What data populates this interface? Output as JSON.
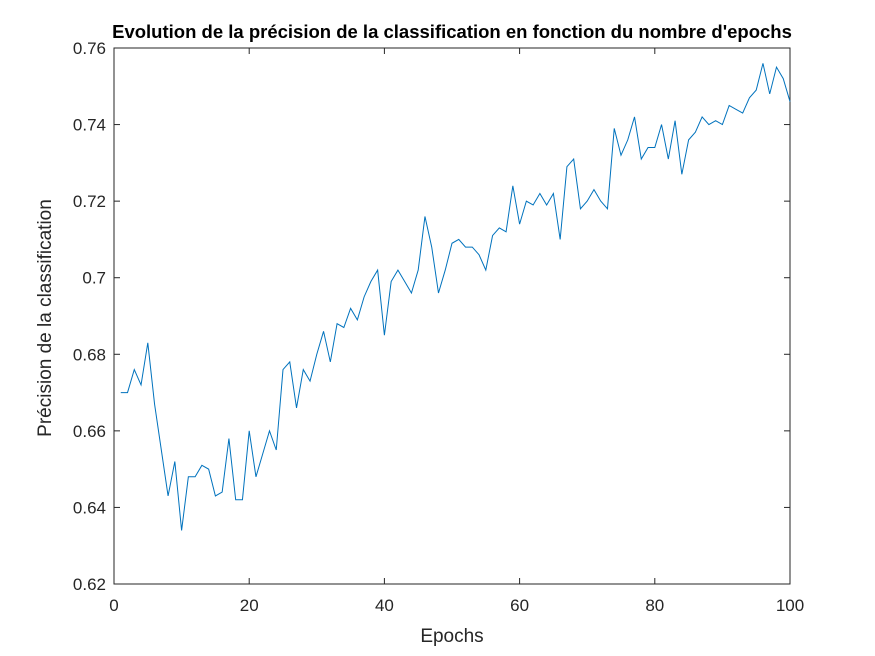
{
  "chart_data": {
    "type": "line",
    "title": "Evolution de la précision de la classification en fonction du nombre d'epochs",
    "xlabel": "Epochs",
    "ylabel": "Précision de la classification",
    "xlim": [
      0,
      100
    ],
    "ylim": [
      0.62,
      0.76
    ],
    "xticks": [
      0,
      20,
      40,
      60,
      80,
      100
    ],
    "xtick_labels": [
      "0",
      "20",
      "40",
      "60",
      "80",
      "100"
    ],
    "yticks": [
      0.62,
      0.64,
      0.66,
      0.68,
      0.7,
      0.72,
      0.74,
      0.76
    ],
    "ytick_labels": [
      "0.62",
      "0.64",
      "0.66",
      "0.68",
      "0.7",
      "0.72",
      "0.74",
      "0.76"
    ],
    "grid": false,
    "line_color": "#0072BD",
    "series": [
      {
        "x": [
          1,
          2,
          3,
          4,
          5,
          6,
          7,
          8,
          9,
          10,
          11,
          12,
          13,
          14,
          15,
          16,
          17,
          18,
          19,
          20,
          21,
          22,
          23,
          24,
          25,
          26,
          27,
          28,
          29,
          30,
          31,
          32,
          33,
          34,
          35,
          36,
          37,
          38,
          39,
          40,
          41,
          42,
          43,
          44,
          45,
          46,
          47,
          48,
          49,
          50,
          51,
          52,
          53,
          54,
          55,
          56,
          57,
          58,
          59,
          60,
          61,
          62,
          63,
          64,
          65,
          66,
          67,
          68,
          69,
          70,
          71,
          72,
          73,
          74,
          75,
          76,
          77,
          78,
          79,
          80,
          81,
          82,
          83,
          84,
          85,
          86,
          87,
          88,
          89,
          90,
          91,
          92,
          93,
          94,
          95,
          96,
          97,
          98,
          99,
          100
        ],
        "values": [
          0.67,
          0.67,
          0.676,
          0.672,
          0.683,
          0.667,
          0.655,
          0.643,
          0.652,
          0.634,
          0.648,
          0.648,
          0.651,
          0.65,
          0.643,
          0.644,
          0.658,
          0.642,
          0.642,
          0.66,
          0.648,
          0.654,
          0.66,
          0.655,
          0.676,
          0.678,
          0.666,
          0.676,
          0.673,
          0.68,
          0.686,
          0.678,
          0.688,
          0.687,
          0.692,
          0.689,
          0.695,
          0.699,
          0.702,
          0.685,
          0.699,
          0.702,
          0.699,
          0.696,
          0.702,
          0.716,
          0.708,
          0.696,
          0.702,
          0.709,
          0.71,
          0.708,
          0.708,
          0.706,
          0.702,
          0.711,
          0.713,
          0.712,
          0.724,
          0.714,
          0.72,
          0.719,
          0.722,
          0.719,
          0.722,
          0.71,
          0.729,
          0.731,
          0.718,
          0.72,
          0.723,
          0.72,
          0.718,
          0.739,
          0.732,
          0.736,
          0.742,
          0.731,
          0.734,
          0.734,
          0.74,
          0.731,
          0.741,
          0.727,
          0.736,
          0.738,
          0.742,
          0.74,
          0.741,
          0.74,
          0.745,
          0.744,
          0.743,
          0.747,
          0.749,
          0.756,
          0.748,
          0.755,
          0.752,
          0.746
        ]
      }
    ]
  }
}
